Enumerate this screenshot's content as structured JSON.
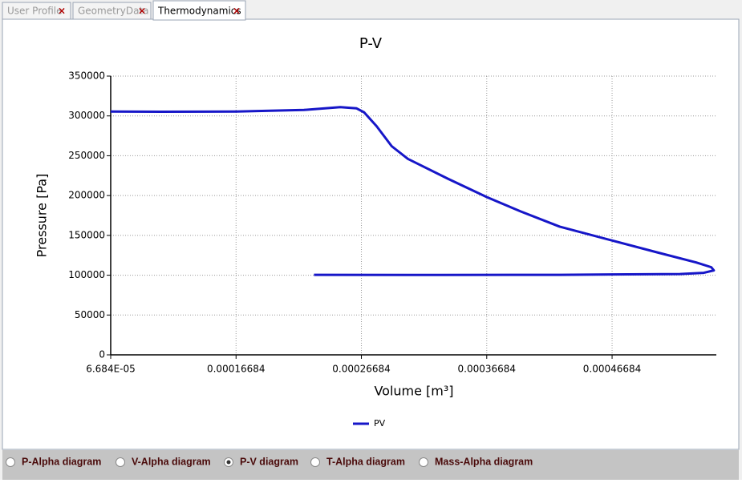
{
  "tabs": [
    {
      "label": "User Profile",
      "active": false
    },
    {
      "label": "GeometryData",
      "active": false
    },
    {
      "label": "Thermodynamics",
      "active": true
    }
  ],
  "chart_data": {
    "type": "line",
    "title": "P-V",
    "x_label": "Volume [m³]",
    "y_label": "Pressure [Pa]",
    "xlim": [
      6.684e-05,
      0.00055
    ],
    "ylim": [
      0,
      350000
    ],
    "xticks": [
      {
        "value": 6.684e-05,
        "label": "6.684E-05"
      },
      0.00016684,
      0.00026684,
      0.00036684,
      0.00046684
    ],
    "yticks": [
      0,
      50000,
      100000,
      150000,
      200000,
      250000,
      300000,
      350000
    ],
    "grid": true,
    "legend": "bottom",
    "series": [
      {
        "name": "PV",
        "color": "#1616c8",
        "x": [
          6.684e-05,
          0.000107,
          0.000167,
          0.000221,
          0.00025,
          0.000263,
          0.000269,
          0.000279,
          0.000291,
          0.000304,
          0.000336,
          0.000367,
          0.000394,
          0.000425,
          0.000467,
          0.000502,
          0.000534,
          0.000546,
          0.000548,
          0.00054,
          0.000521,
          0.000425,
          0.00033,
          0.000229
        ],
        "values": [
          305500,
          305300,
          305500,
          307500,
          311000,
          309500,
          304500,
          287000,
          262000,
          246000,
          221000,
          198000,
          180000,
          161000,
          143500,
          129000,
          116000,
          110000,
          106000,
          103000,
          101500,
          100500,
          100300,
          100500
        ]
      }
    ]
  },
  "options": [
    {
      "label": "P-Alpha diagram",
      "selected": false
    },
    {
      "label": "V-Alpha diagram",
      "selected": false
    },
    {
      "label": "P-V diagram",
      "selected": true
    },
    {
      "label": "T-Alpha diagram",
      "selected": false
    },
    {
      "label": "Mass-Alpha diagram",
      "selected": false
    }
  ]
}
